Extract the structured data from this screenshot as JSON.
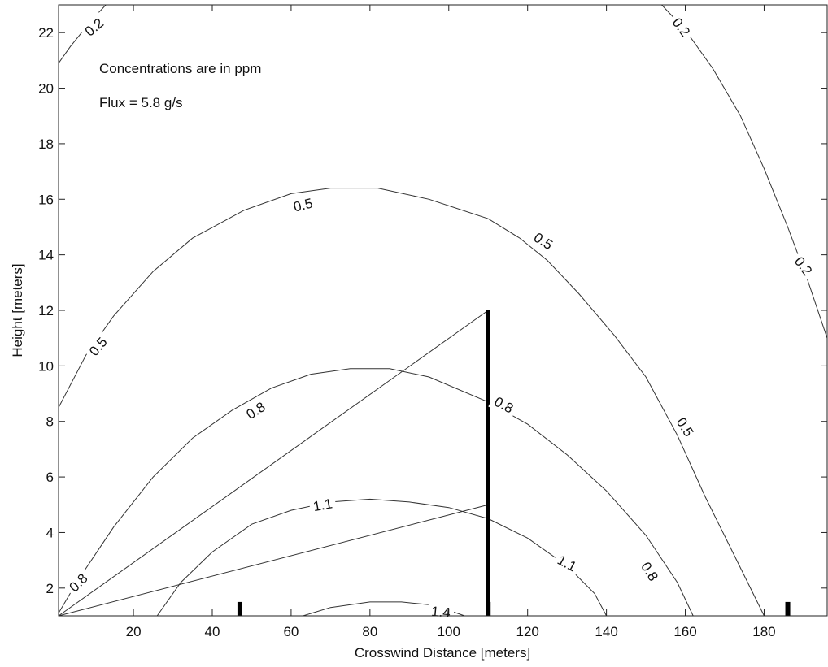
{
  "chart_data": {
    "type": "contour",
    "xlabel": "Crosswind Distance [meters]",
    "ylabel": "Height [meters]",
    "xlim": [
      1,
      196
    ],
    "ylim": [
      1,
      23
    ],
    "xticks": [
      20,
      40,
      60,
      80,
      100,
      120,
      140,
      160,
      180
    ],
    "yticks": [
      2,
      4,
      6,
      8,
      10,
      12,
      14,
      16,
      18,
      20,
      22
    ],
    "grid": false,
    "annotations": [
      "Concentrations are in ppm",
      "Flux = 5.8 g/s"
    ],
    "contours": [
      {
        "level": "0.2",
        "segments": [
          [
            [
              1,
              20.9
            ],
            [
              4,
              21.5
            ],
            [
              8,
              22.2
            ],
            [
              11,
              22.7
            ],
            [
              13,
              23.0
            ]
          ],
          [
            [
              154,
              23.0
            ],
            [
              160,
              22.1
            ],
            [
              167,
              20.7
            ],
            [
              174,
              19.0
            ],
            [
              180,
              17.1
            ],
            [
              186,
              15.0
            ],
            [
              191,
              13.1
            ],
            [
              196,
              11.0
            ]
          ]
        ],
        "labels": [
          {
            "text": "0.2",
            "x": 10,
            "y": 22.2,
            "angle": -40
          },
          {
            "text": "0.2",
            "x": 159,
            "y": 22.2,
            "angle": 53
          },
          {
            "text": "0.2",
            "x": 190,
            "y": 13.6,
            "angle": 53
          }
        ]
      },
      {
        "level": "0.5",
        "segments": [
          [
            [
              1,
              8.5
            ],
            [
              8,
              10.4
            ],
            [
              15,
              11.8
            ],
            [
              25,
              13.4
            ],
            [
              35,
              14.6
            ],
            [
              48,
              15.6
            ],
            [
              60,
              16.2
            ],
            [
              70,
              16.4
            ],
            [
              82,
              16.4
            ],
            [
              95,
              16.0
            ],
            [
              110,
              15.3
            ],
            [
              118,
              14.6
            ],
            [
              125,
              13.8
            ],
            [
              133,
              12.6
            ],
            [
              142,
              11.1
            ],
            [
              150,
              9.6
            ],
            [
              158,
              7.5
            ],
            [
              165,
              5.3
            ],
            [
              172,
              3.3
            ],
            [
              180,
              1.0
            ]
          ]
        ],
        "labels": [
          {
            "text": "0.5",
            "x": 11,
            "y": 10.7,
            "angle": -50
          },
          {
            "text": "0.5",
            "x": 63,
            "y": 15.8,
            "angle": -14
          },
          {
            "text": "0.5",
            "x": 124,
            "y": 14.5,
            "angle": 32
          },
          {
            "text": "0.5",
            "x": 160,
            "y": 7.8,
            "angle": 58
          }
        ]
      },
      {
        "level": "0.8",
        "segments": [
          [
            [
              1,
              1.1
            ],
            [
              6,
              2.3
            ],
            [
              15,
              4.2
            ],
            [
              25,
              6.0
            ],
            [
              35,
              7.4
            ],
            [
              45,
              8.4
            ],
            [
              55,
              9.2
            ],
            [
              65,
              9.7
            ],
            [
              75,
              9.9
            ],
            [
              85,
              9.9
            ],
            [
              95,
              9.6
            ],
            [
              110,
              8.7
            ],
            [
              120,
              7.9
            ],
            [
              130,
              6.8
            ],
            [
              140,
              5.5
            ],
            [
              150,
              3.9
            ],
            [
              158,
              2.2
            ],
            [
              162,
              1.0
            ]
          ]
        ],
        "labels": [
          {
            "text": "0.8",
            "x": 6,
            "y": 2.2,
            "angle": -45
          },
          {
            "text": "0.8",
            "x": 51,
            "y": 8.4,
            "angle": -32
          },
          {
            "text": "0.8",
            "x": 114,
            "y": 8.6,
            "angle": 28
          },
          {
            "text": "0.8",
            "x": 151,
            "y": 2.6,
            "angle": 58
          }
        ]
      },
      {
        "level": "1.1",
        "segments": [
          [
            [
              26,
              1.0
            ],
            [
              32,
              2.2
            ],
            [
              40,
              3.3
            ],
            [
              50,
              4.3
            ],
            [
              60,
              4.8
            ],
            [
              70,
              5.1
            ],
            [
              80,
              5.2
            ],
            [
              90,
              5.1
            ],
            [
              100,
              4.9
            ],
            [
              110,
              4.5
            ],
            [
              120,
              3.8
            ],
            [
              130,
              2.8
            ],
            [
              137,
              1.8
            ],
            [
              140,
              1.0
            ]
          ]
        ],
        "labels": [
          {
            "text": "1.1",
            "x": 68,
            "y": 5.0,
            "angle": -10
          },
          {
            "text": "1.1",
            "x": 130,
            "y": 2.9,
            "angle": 28
          }
        ]
      },
      {
        "level": "1.4",
        "segments": [
          [
            [
              63,
              1.0
            ],
            [
              70,
              1.3
            ],
            [
              80,
              1.5
            ],
            [
              88,
              1.5
            ],
            [
              95,
              1.4
            ],
            [
              100,
              1.2
            ],
            [
              104,
              1.0
            ]
          ]
        ],
        "labels": [
          {
            "text": "1.4",
            "x": 98,
            "y": 1.15,
            "angle": 5
          }
        ]
      }
    ],
    "lines": [
      {
        "from": [
          1,
          1.0
        ],
        "to": [
          110,
          12.0
        ]
      },
      {
        "from": [
          1,
          1.0
        ],
        "to": [
          110,
          5.0
        ]
      }
    ],
    "tower": {
      "x": 110,
      "y0": 1.0,
      "y1": 12.0
    },
    "ground_markers": [
      {
        "x": 47,
        "height": 1.5
      },
      {
        "x": 110,
        "height": 1.5
      },
      {
        "x": 186,
        "height": 1.5
      }
    ]
  }
}
